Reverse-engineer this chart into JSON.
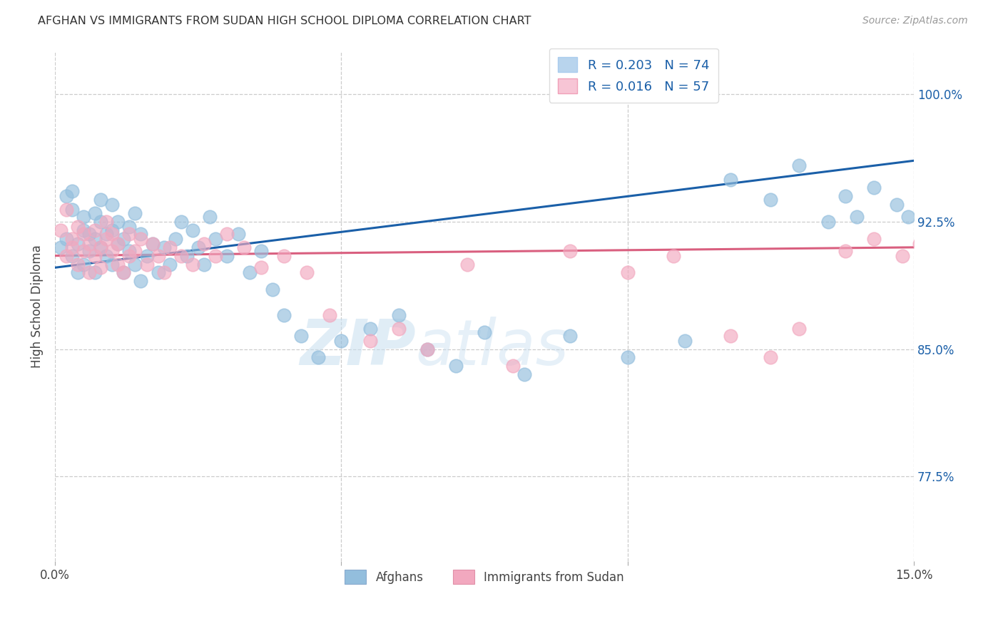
{
  "title": "AFGHAN VS IMMIGRANTS FROM SUDAN HIGH SCHOOL DIPLOMA CORRELATION CHART",
  "source": "Source: ZipAtlas.com",
  "ylabel": "High School Diploma",
  "xlim": [
    0.0,
    0.15
  ],
  "ylim": [
    0.725,
    1.025
  ],
  "yticks": [
    0.775,
    0.85,
    0.925,
    1.0
  ],
  "ytick_labels": [
    "77.5%",
    "85.0%",
    "92.5%",
    "100.0%"
  ],
  "watermark": "ZIPatlas",
  "legend_r_afghan": "0.203",
  "legend_n_afghan": "74",
  "legend_r_sudan": "0.016",
  "legend_n_sudan": "57",
  "afghan_color": "#93bedd",
  "sudan_color": "#f2a8bf",
  "line_afghan_color": "#1a5fa8",
  "line_sudan_color": "#d95f7f",
  "legend_afghan_box": "#b8d4ed",
  "legend_sudan_box": "#f7c5d5",
  "afghan_x": [
    0.001,
    0.002,
    0.002,
    0.003,
    0.003,
    0.003,
    0.004,
    0.004,
    0.005,
    0.005,
    0.005,
    0.006,
    0.006,
    0.007,
    0.007,
    0.007,
    0.008,
    0.008,
    0.008,
    0.009,
    0.009,
    0.01,
    0.01,
    0.01,
    0.011,
    0.011,
    0.012,
    0.012,
    0.013,
    0.013,
    0.014,
    0.014,
    0.015,
    0.015,
    0.016,
    0.017,
    0.018,
    0.019,
    0.02,
    0.021,
    0.022,
    0.023,
    0.024,
    0.025,
    0.026,
    0.027,
    0.028,
    0.03,
    0.032,
    0.034,
    0.036,
    0.038,
    0.04,
    0.043,
    0.046,
    0.05,
    0.055,
    0.06,
    0.065,
    0.07,
    0.075,
    0.082,
    0.09,
    0.1,
    0.11,
    0.118,
    0.125,
    0.13,
    0.135,
    0.138,
    0.14,
    0.143,
    0.147,
    0.149
  ],
  "afghan_y": [
    0.91,
    0.94,
    0.915,
    0.905,
    0.932,
    0.943,
    0.895,
    0.912,
    0.9,
    0.92,
    0.928,
    0.908,
    0.918,
    0.895,
    0.915,
    0.93,
    0.91,
    0.925,
    0.938,
    0.905,
    0.918,
    0.9,
    0.92,
    0.935,
    0.912,
    0.925,
    0.895,
    0.915,
    0.908,
    0.922,
    0.9,
    0.93,
    0.89,
    0.918,
    0.905,
    0.912,
    0.895,
    0.91,
    0.9,
    0.915,
    0.925,
    0.905,
    0.92,
    0.91,
    0.9,
    0.928,
    0.915,
    0.905,
    0.918,
    0.895,
    0.908,
    0.885,
    0.87,
    0.858,
    0.845,
    0.855,
    0.862,
    0.87,
    0.85,
    0.84,
    0.86,
    0.835,
    0.858,
    0.845,
    0.855,
    0.95,
    0.938,
    0.958,
    0.925,
    0.94,
    0.928,
    0.945,
    0.935,
    0.928
  ],
  "sudan_x": [
    0.001,
    0.002,
    0.002,
    0.003,
    0.003,
    0.004,
    0.004,
    0.005,
    0.005,
    0.006,
    0.006,
    0.007,
    0.007,
    0.008,
    0.008,
    0.009,
    0.009,
    0.01,
    0.01,
    0.011,
    0.011,
    0.012,
    0.013,
    0.013,
    0.014,
    0.015,
    0.016,
    0.017,
    0.018,
    0.019,
    0.02,
    0.022,
    0.024,
    0.026,
    0.028,
    0.03,
    0.033,
    0.036,
    0.04,
    0.044,
    0.048,
    0.055,
    0.06,
    0.065,
    0.072,
    0.08,
    0.09,
    0.1,
    0.108,
    0.118,
    0.125,
    0.13,
    0.138,
    0.143,
    0.148,
    0.151,
    0.155
  ],
  "sudan_y": [
    0.92,
    0.905,
    0.932,
    0.915,
    0.91,
    0.9,
    0.922,
    0.908,
    0.918,
    0.895,
    0.912,
    0.905,
    0.92,
    0.91,
    0.898,
    0.915,
    0.925,
    0.908,
    0.918,
    0.9,
    0.912,
    0.895,
    0.905,
    0.918,
    0.908,
    0.915,
    0.9,
    0.912,
    0.905,
    0.895,
    0.91,
    0.905,
    0.9,
    0.912,
    0.905,
    0.918,
    0.91,
    0.898,
    0.905,
    0.895,
    0.87,
    0.855,
    0.862,
    0.85,
    0.9,
    0.84,
    0.908,
    0.895,
    0.905,
    0.858,
    0.845,
    0.862,
    0.908,
    0.915,
    0.905,
    0.912,
    0.905
  ]
}
